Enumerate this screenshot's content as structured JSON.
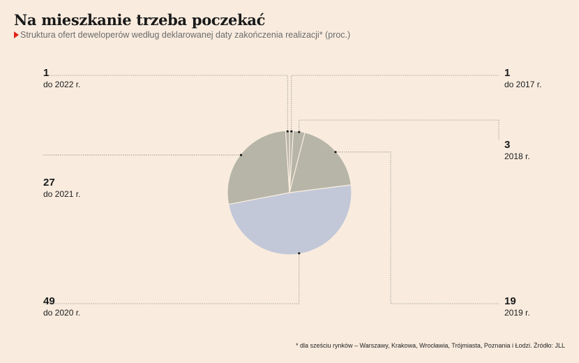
{
  "title": "Na mieszkanie trzeba poczekać",
  "subtitle": "Struktura ofert deweloperów według deklarowanej daty zakończenia realizacji* (proc.)",
  "footnote": "* dla sześciu rynków – Warszawy, Krakowa, Wrocławia, Trójmiasta, Poznania i Łodzi. Źródło: JLL",
  "chart_data": {
    "type": "pie",
    "unit": "proc.",
    "categories": [
      "do 2017 r.",
      "2018 r.",
      "2019 r.",
      "do 2020 r.",
      "do 2021 r.",
      "do 2022 r."
    ],
    "values": [
      1,
      3,
      19,
      49,
      27,
      1
    ],
    "labels": [
      {
        "value": "1",
        "category": "do 2017 r."
      },
      {
        "value": "3",
        "category": "2018 r."
      },
      {
        "value": "19",
        "category": "2019 r."
      },
      {
        "value": "49",
        "category": "do 2020 r."
      },
      {
        "value": "27",
        "category": "do 2021 r."
      },
      {
        "value": "1",
        "category": "do 2022 r."
      }
    ],
    "colors": [
      "#b6b5a8",
      "#b6b5a8",
      "#b6b5a8",
      "#c2c8d8",
      "#b6b5a8",
      "#b6b5a8"
    ],
    "slice_separator_color": "#f9ecdf"
  }
}
